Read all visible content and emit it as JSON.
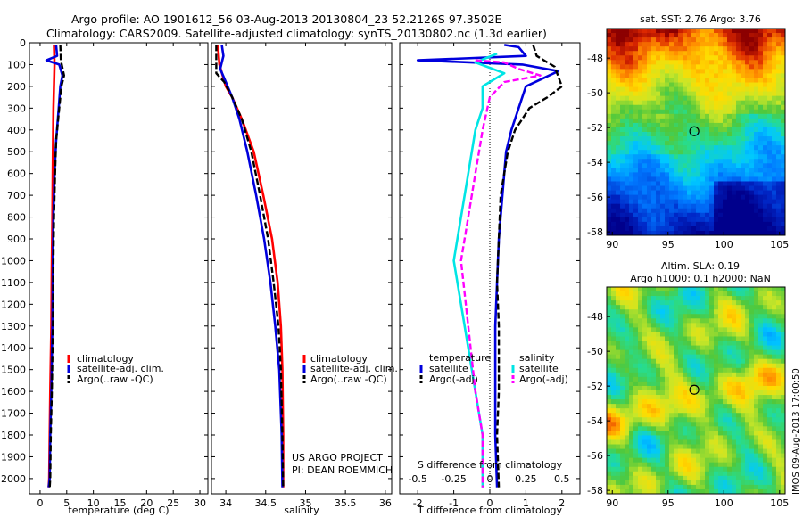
{
  "header": {
    "line1": "Argo profile: AO 1901612_56 03-Aug-2013 20130804_23 52.2126S 97.3502E",
    "line2": "Climatology: CARS2009. Satellite-adjusted climatology: synTS_20130802.nc (1.3d earlier)"
  },
  "colors": {
    "climatology": "#ff0000",
    "satellite": "#0000dd",
    "argo": "#000000",
    "salinity_satellite": "#00e5e5",
    "salinity_argo": "#ff00ff"
  },
  "depth_ticks": [
    0,
    100,
    200,
    300,
    400,
    500,
    600,
    700,
    800,
    900,
    1000,
    1100,
    1200,
    1300,
    1400,
    1500,
    1600,
    1700,
    1800,
    1900,
    2000
  ],
  "chart_data": [
    {
      "type": "line",
      "id": "temperature",
      "xlabel": "temperature (deg C)",
      "xlim": [
        -2,
        31.5
      ],
      "ylim": [
        2070,
        0
      ],
      "y_reversed": true,
      "xticks": [
        "0",
        "5",
        "10",
        "15",
        "20",
        "25",
        "30"
      ],
      "xtick_values": [
        0,
        5,
        10,
        15,
        20,
        25,
        30
      ],
      "legend": [
        "climatology",
        "satellite-adj. clim.",
        "Argo(..raw -QC)"
      ],
      "series": [
        {
          "name": "climatology",
          "color": "#ff0000",
          "dashed": false,
          "points": [
            [
              2.6,
              10
            ],
            [
              2.7,
              100
            ],
            [
              2.6,
              200
            ],
            [
              2.5,
              300
            ],
            [
              2.4,
              500
            ],
            [
              2.3,
              800
            ],
            [
              2.2,
              1000
            ],
            [
              2.1,
              1300
            ],
            [
              1.9,
              1600
            ],
            [
              1.7,
              2000
            ],
            [
              1.6,
              2040
            ]
          ]
        },
        {
          "name": "satellite-adj. clim.",
          "color": "#0000dd",
          "dashed": false,
          "points": [
            [
              3.0,
              10
            ],
            [
              3.2,
              60
            ],
            [
              1.2,
              80
            ],
            [
              3.6,
              100
            ],
            [
              4.2,
              150
            ],
            [
              3.8,
              200
            ],
            [
              3.5,
              300
            ],
            [
              3.0,
              450
            ],
            [
              2.7,
              600
            ],
            [
              2.5,
              800
            ],
            [
              2.4,
              1000
            ],
            [
              2.3,
              1300
            ],
            [
              2.1,
              1600
            ],
            [
              1.9,
              1800
            ],
            [
              1.8,
              2000
            ],
            [
              1.6,
              2040
            ]
          ]
        },
        {
          "name": "Argo(..raw -QC)",
          "color": "#000000",
          "dashed": true,
          "points": [
            [
              3.8,
              10
            ],
            [
              3.9,
              80
            ],
            [
              4.5,
              150
            ],
            [
              4.0,
              200
            ],
            [
              3.6,
              300
            ],
            [
              3.0,
              450
            ],
            [
              2.8,
              600
            ],
            [
              2.6,
              800
            ],
            [
              2.5,
              1000
            ],
            [
              2.4,
              1300
            ],
            [
              2.2,
              1600
            ],
            [
              2.0,
              1800
            ],
            [
              1.9,
              2000
            ],
            [
              1.8,
              2040
            ]
          ]
        }
      ]
    },
    {
      "type": "line",
      "id": "salinity",
      "xlabel": "salinity",
      "xlim": [
        33.82,
        36.08
      ],
      "ylim": [
        2070,
        0
      ],
      "y_reversed": true,
      "xticks": [
        "34",
        "34.5",
        "35",
        "35.5",
        "36"
      ],
      "xtick_values": [
        34,
        34.5,
        35,
        35.5,
        36
      ],
      "legend": [
        "climatology",
        "satellite-adj. clim.",
        "Argo(..raw -QC)"
      ],
      "annotations": [
        "US ARGO PROJECT",
        "PI: DEAN ROEMMICH"
      ],
      "series": [
        {
          "name": "climatology",
          "color": "#ff0000",
          "dashed": false,
          "points": [
            [
              33.9,
              10
            ],
            [
              33.92,
              100
            ],
            [
              34.0,
              200
            ],
            [
              34.08,
              250
            ],
            [
              34.2,
              350
            ],
            [
              34.35,
              500
            ],
            [
              34.47,
              700
            ],
            [
              34.58,
              900
            ],
            [
              34.65,
              1100
            ],
            [
              34.69,
              1300
            ],
            [
              34.71,
              1500
            ],
            [
              34.72,
              1800
            ],
            [
              34.72,
              2040
            ]
          ]
        },
        {
          "name": "satellite-adj. clim.",
          "color": "#0000dd",
          "dashed": false,
          "points": [
            [
              33.95,
              10
            ],
            [
              33.97,
              60
            ],
            [
              33.93,
              120
            ],
            [
              34.0,
              180
            ],
            [
              34.08,
              250
            ],
            [
              34.17,
              350
            ],
            [
              34.27,
              500
            ],
            [
              34.38,
              700
            ],
            [
              34.48,
              900
            ],
            [
              34.56,
              1100
            ],
            [
              34.62,
              1300
            ],
            [
              34.67,
              1500
            ],
            [
              34.7,
              1800
            ],
            [
              34.71,
              2040
            ]
          ]
        },
        {
          "name": "Argo(..raw -QC)",
          "color": "#000000",
          "dashed": true,
          "points": [
            [
              33.88,
              10
            ],
            [
              33.88,
              140
            ],
            [
              33.98,
              180
            ],
            [
              34.08,
              250
            ],
            [
              34.2,
              350
            ],
            [
              34.32,
              500
            ],
            [
              34.43,
              700
            ],
            [
              34.53,
              900
            ],
            [
              34.6,
              1100
            ],
            [
              34.66,
              1300
            ],
            [
              34.69,
              1500
            ],
            [
              34.71,
              1800
            ],
            [
              34.72,
              2040
            ]
          ]
        }
      ]
    },
    {
      "type": "line",
      "id": "difference",
      "xlabel": "T difference from climatology",
      "secondary_xlabel": "S difference from climatology",
      "xlim": [
        -2.5,
        2.5
      ],
      "ylim": [
        2070,
        0
      ],
      "y_reversed": true,
      "xticks": [
        "-2",
        "-1",
        "0",
        "1",
        "2"
      ],
      "xtick_values": [
        -2,
        -1,
        0,
        1,
        2
      ],
      "s_xticks": [
        "-0.5",
        "-0.25",
        "0",
        "0.25",
        "0.5"
      ],
      "s_xtick_values": [
        -0.5,
        -0.25,
        0,
        0.25,
        0.5
      ],
      "legend_groups": [
        "temperature",
        "salinity"
      ],
      "legend": [
        "satellite",
        "Argo(-adj)",
        "satellite",
        "Argo(-adj)"
      ],
      "series": [
        {
          "name": "satellite",
          "group": "temperature",
          "color": "#0000dd",
          "dashed": false,
          "points": [
            [
              0.4,
              10
            ],
            [
              0.8,
              20
            ],
            [
              1.0,
              60
            ],
            [
              -2.0,
              80
            ],
            [
              0.9,
              100
            ],
            [
              1.9,
              130
            ],
            [
              1.0,
              200
            ],
            [
              0.8,
              300
            ],
            [
              0.6,
              400
            ],
            [
              0.45,
              500
            ],
            [
              0.35,
              700
            ],
            [
              0.25,
              900
            ],
            [
              0.2,
              1100
            ],
            [
              0.15,
              1300
            ],
            [
              0.15,
              1600
            ],
            [
              0.15,
              1800
            ],
            [
              0.2,
              2040
            ]
          ]
        },
        {
          "name": "Argo(-adj)",
          "group": "temperature",
          "color": "#000000",
          "dashed": true,
          "points": [
            [
              1.2,
              10
            ],
            [
              1.3,
              60
            ],
            [
              1.8,
              110
            ],
            [
              2.0,
              200
            ],
            [
              1.6,
              250
            ],
            [
              1.1,
              300
            ],
            [
              0.7,
              400
            ],
            [
              0.5,
              500
            ],
            [
              0.3,
              700
            ],
            [
              0.25,
              900
            ],
            [
              0.2,
              1100
            ],
            [
              0.25,
              1300
            ],
            [
              0.25,
              1600
            ],
            [
              0.2,
              1800
            ],
            [
              0.25,
              2040
            ]
          ]
        },
        {
          "name": "satellite",
          "group": "salinity",
          "color": "#00e5e5",
          "dashed": false,
          "points": [
            [
              0.05,
              50
            ],
            [
              -0.1,
              90
            ],
            [
              0.1,
              140
            ],
            [
              -0.05,
              200
            ],
            [
              -0.05,
              300
            ],
            [
              -0.1,
              400
            ],
            [
              -0.15,
              600
            ],
            [
              -0.2,
              800
            ],
            [
              -0.25,
              1000
            ],
            [
              -0.2,
              1200
            ],
            [
              -0.15,
              1400
            ],
            [
              -0.1,
              1600
            ],
            [
              -0.05,
              1800
            ],
            [
              -0.05,
              2040
            ]
          ]
        },
        {
          "name": "Argo(-adj)",
          "group": "salinity",
          "color": "#ff00ff",
          "dashed": true,
          "points": [
            [
              -0.1,
              80
            ],
            [
              0.1,
              90
            ],
            [
              0.2,
              120
            ],
            [
              0.35,
              150
            ],
            [
              0.1,
              180
            ],
            [
              0.0,
              250
            ],
            [
              -0.05,
              400
            ],
            [
              -0.1,
              600
            ],
            [
              -0.15,
              800
            ],
            [
              -0.2,
              1000
            ],
            [
              -0.15,
              1300
            ],
            [
              -0.1,
              1600
            ],
            [
              -0.05,
              1800
            ],
            [
              -0.05,
              2040
            ]
          ]
        }
      ]
    },
    {
      "type": "heatmap",
      "id": "sst-map",
      "title": "sat. SST: 2.76 Argo: 3.76",
      "xlim": [
        89.5,
        105.5
      ],
      "ylim": [
        -58.2,
        -46.3
      ],
      "xticks": [
        "90",
        "95",
        "100",
        "105"
      ],
      "xtick_values": [
        90,
        95,
        100,
        105
      ],
      "yticks": [
        "-48",
        "-50",
        "-52",
        "-54",
        "-56",
        "-58"
      ],
      "ytick_values": [
        -48,
        -50,
        -52,
        -54,
        -56,
        -58
      ],
      "marker": [
        97.35,
        -52.21
      ]
    },
    {
      "type": "heatmap",
      "id": "sla-map",
      "title": "Altim. SLA: 0.19",
      "subtitle": "Argo h1000: 0.1 h2000: NaN",
      "xlim": [
        89.5,
        105.5
      ],
      "ylim": [
        -58.2,
        -46.3
      ],
      "xticks": [
        "90",
        "95",
        "100",
        "105"
      ],
      "xtick_values": [
        90,
        95,
        100,
        105
      ],
      "yticks": [
        "-48",
        "-50",
        "-52",
        "-54",
        "-56",
        "-58"
      ],
      "ytick_values": [
        -48,
        -50,
        -52,
        -54,
        -56,
        -58
      ],
      "marker": [
        97.35,
        -52.21
      ],
      "watermark": "IMOS 09-Aug-2013 17:00:50"
    }
  ]
}
